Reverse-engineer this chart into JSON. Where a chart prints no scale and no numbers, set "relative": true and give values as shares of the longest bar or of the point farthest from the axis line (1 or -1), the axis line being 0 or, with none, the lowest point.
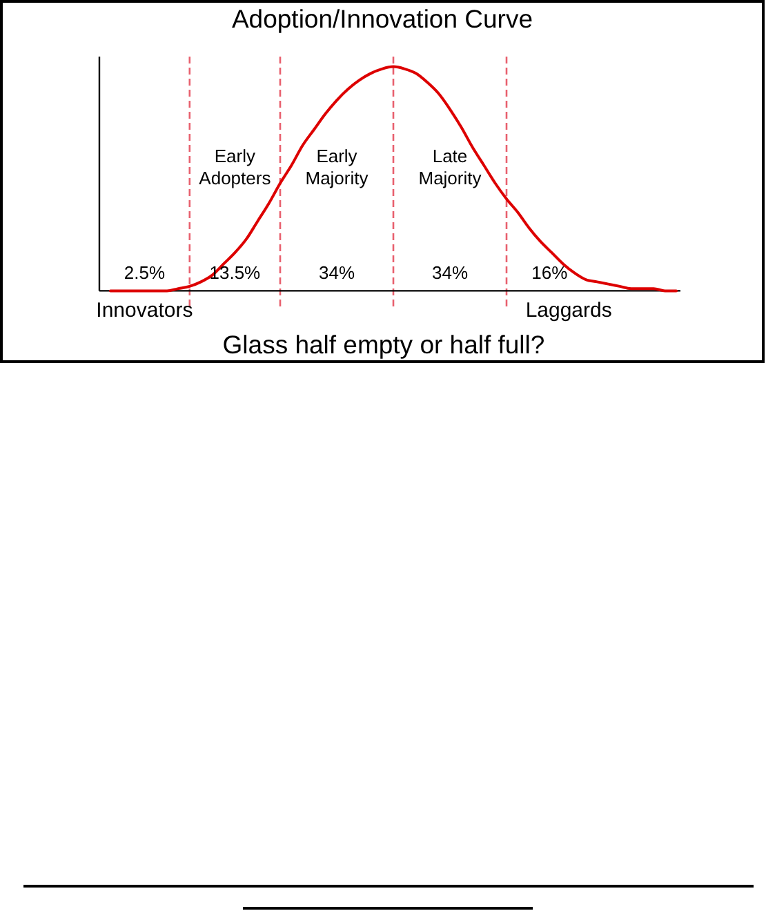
{
  "chart_data": {
    "type": "line",
    "title": "Adoption/Innovation Curve",
    "relative": true,
    "grid": "x",
    "categories": [
      null,
      null,
      null,
      null,
      null,
      null,
      null,
      null,
      null,
      null,
      null,
      null,
      null,
      null,
      null,
      null,
      null,
      null,
      null,
      null,
      null,
      null,
      null,
      null,
      null,
      null,
      null,
      null,
      null,
      null,
      null,
      null,
      null,
      null,
      null,
      null,
      null,
      null,
      null,
      null,
      null,
      null,
      null,
      null,
      null,
      null,
      null,
      null,
      null,
      null,
      null
    ],
    "series": [
      {
        "color": "#dd0000",
        "values": [
          0,
          0,
          0,
          0,
          0,
          0,
          0.01,
          0.02,
          0.04,
          0.07,
          0.12,
          0.17,
          0.23,
          0.31,
          0.39,
          0.48,
          0.56,
          0.65,
          0.72,
          0.79,
          0.85,
          0.9,
          0.94,
          0.97,
          0.99,
          1,
          0.99,
          0.97,
          0.93,
          0.88,
          0.81,
          0.73,
          0.64,
          0.56,
          0.48,
          0.41,
          0.35,
          0.28,
          0.22,
          0.17,
          0.12,
          0.08,
          0.05,
          0.04,
          0.03,
          0.02,
          0.01,
          0.01,
          0.01,
          0,
          0
        ]
      }
    ],
    "annotations": [
      "Innovators",
      "Early Adopters",
      "Early Majority",
      "Late Majority",
      "Laggards",
      "2.5%",
      "13.5%",
      "34%",
      "34%",
      "16%",
      "Glass half empty or half full?"
    ]
  }
}
